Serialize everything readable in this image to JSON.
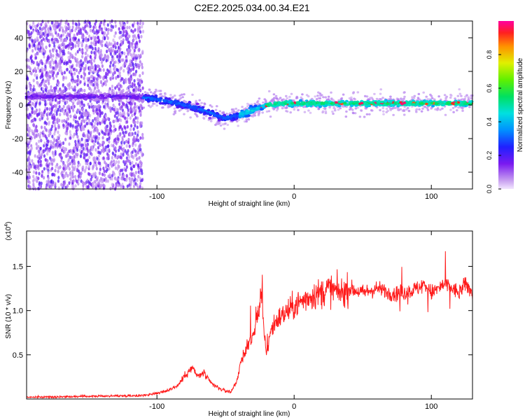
{
  "title": "C2E2.2025.034.00.34.E21",
  "chart_data": [
    {
      "type": "heatmap",
      "panel": "spectrogram",
      "xlabel": "Height of straight line (km)",
      "ylabel": "Frequency (Hz)",
      "xlim": [
        -195,
        130
      ],
      "ylim": [
        -50,
        50
      ],
      "x_ticks": [
        -100,
        0,
        100
      ],
      "y_ticks": [
        -40,
        -20,
        0,
        20,
        40
      ],
      "x_tick_labels": [
        "-100",
        "0",
        "100"
      ],
      "y_tick_labels": [
        "-40",
        "-20",
        "0",
        "20",
        "40"
      ],
      "colorbar": {
        "label": "Normalized spectral amplitude",
        "range": [
          0,
          1
        ],
        "ticks": [
          0.0,
          0.2,
          0.4,
          0.6,
          0.8
        ],
        "tick_labels": [
          "0.0",
          "0.2",
          "0.4",
          "0.6",
          "0.8"
        ]
      },
      "ridge_frequency": [
        {
          "x": -195,
          "y": 5
        },
        {
          "x": -120,
          "y": 5
        },
        {
          "x": -105,
          "y": 4
        },
        {
          "x": -90,
          "y": 2
        },
        {
          "x": -75,
          "y": -1
        },
        {
          "x": -60,
          "y": -5
        },
        {
          "x": -50,
          "y": -8
        },
        {
          "x": -40,
          "y": -6
        },
        {
          "x": -30,
          "y": -3
        },
        {
          "x": -20,
          "y": 0
        },
        {
          "x": -10,
          "y": 1
        },
        {
          "x": 0,
          "y": 1
        },
        {
          "x": 130,
          "y": 1
        }
      ]
    },
    {
      "type": "line",
      "panel": "snr",
      "xlabel": "Height of straight line (km)",
      "ylabel": "SNR (10 * v/v)",
      "scale_label": "(x10",
      "scale_exp": "4",
      "xlim": [
        -195,
        130
      ],
      "ylim": [
        0,
        1.9
      ],
      "x_ticks": [
        -100,
        0,
        100
      ],
      "y_ticks": [
        0.5,
        1.0,
        1.5
      ],
      "x_tick_labels": [
        "-100",
        "0",
        "100"
      ],
      "y_tick_labels": [
        "0.5",
        "1.0",
        "1.5"
      ],
      "line_color": "#ff1a1a",
      "series": [
        {
          "x": [
            -195,
            -150,
            -110,
            -95,
            -85,
            -78,
            -74,
            -70,
            -66,
            -62,
            -58,
            -52,
            -46,
            -42,
            -38,
            -34,
            -30,
            -27,
            -24,
            -22,
            -20,
            -18,
            -15,
            -12,
            -8,
            -4,
            0,
            5,
            10,
            15,
            20,
            25,
            30,
            35,
            40,
            50,
            60,
            70,
            80,
            90,
            95,
            100,
            105,
            110,
            115,
            120,
            125,
            130
          ],
          "y": [
            0.02,
            0.03,
            0.04,
            0.08,
            0.15,
            0.3,
            0.35,
            0.25,
            0.3,
            0.2,
            0.15,
            0.1,
            0.08,
            0.2,
            0.45,
            0.6,
            0.7,
            0.9,
            1.2,
            0.75,
            0.5,
            0.7,
            0.85,
            0.9,
            0.95,
            1.0,
            1.05,
            1.1,
            1.15,
            1.18,
            1.2,
            1.25,
            1.22,
            1.2,
            1.25,
            1.2,
            1.25,
            1.2,
            1.2,
            1.25,
            1.3,
            1.2,
            1.25,
            1.3,
            1.25,
            1.2,
            1.3,
            1.2
          ]
        }
      ]
    }
  ]
}
